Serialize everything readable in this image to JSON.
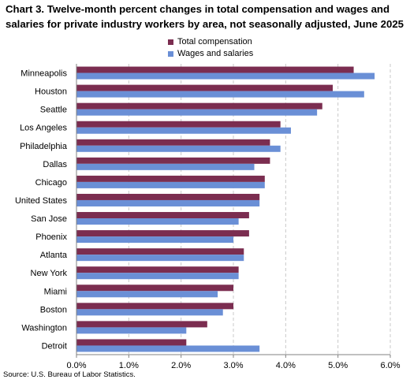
{
  "title": "Chart 3. Twelve-month percent changes in total compensation and wages and salaries for private industry workers by area, not seasonally adjusted, June 2025",
  "source": "Source: U.S. Bureau of Labor Statistics.",
  "colors": {
    "total": "#7b2d50",
    "wages": "#6a8fd6",
    "grid": "#c8c8c8",
    "axis": "#808080"
  },
  "chart_data": {
    "type": "bar",
    "orientation": "horizontal",
    "categories": [
      "Minneapolis",
      "Houston",
      "Seattle",
      "Los Angeles",
      "Philadelphia",
      "Dallas",
      "Chicago",
      "United States",
      "San Jose",
      "Phoenix",
      "Atlanta",
      "New York",
      "Miami",
      "Boston",
      "Washington",
      "Detroit"
    ],
    "series": [
      {
        "name": "Total compensation",
        "values": [
          5.3,
          4.9,
          4.7,
          3.9,
          3.7,
          3.7,
          3.6,
          3.5,
          3.3,
          3.3,
          3.2,
          3.1,
          3.0,
          3.0,
          2.5,
          2.1
        ]
      },
      {
        "name": "Wages and salaries",
        "values": [
          5.7,
          5.5,
          4.6,
          4.1,
          3.9,
          3.4,
          3.6,
          3.5,
          3.1,
          3.0,
          3.2,
          3.1,
          2.7,
          2.8,
          2.1,
          3.5
        ]
      }
    ],
    "xlim": [
      0,
      6.0
    ],
    "xticks": [
      "0.0%",
      "1.0%",
      "2.0%",
      "3.0%",
      "4.0%",
      "5.0%",
      "6.0%"
    ],
    "grid": "vertical dashed",
    "legend": "top-center"
  }
}
